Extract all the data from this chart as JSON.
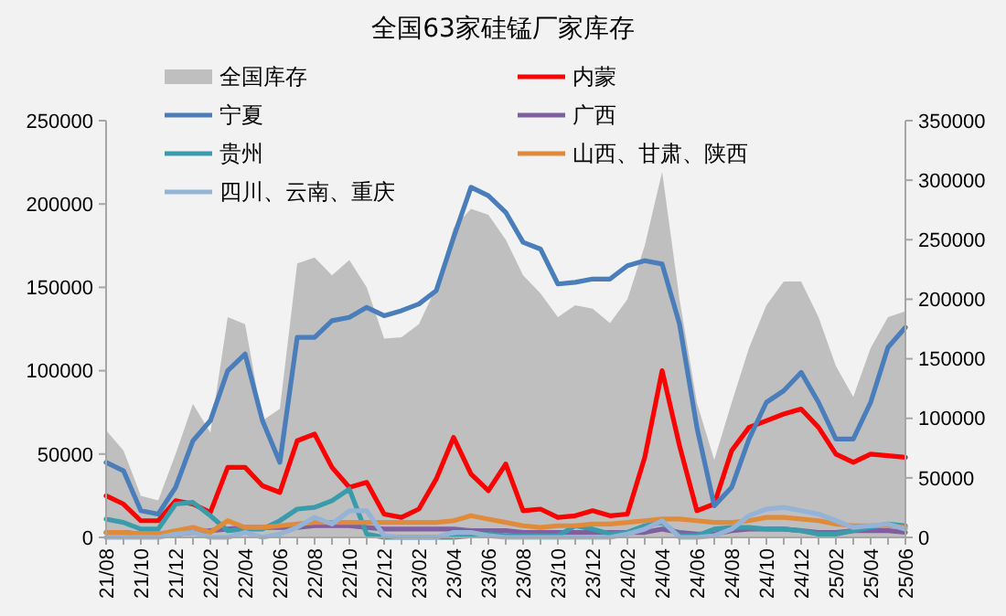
{
  "chart_data": {
    "type": "line",
    "title": "全国63家硅锰厂家库存",
    "categories": [
      "21/08",
      null,
      "21/10",
      null,
      "21/12",
      null,
      "22/02",
      null,
      "22/04",
      null,
      "22/06",
      null,
      "22/08",
      null,
      "22/10",
      null,
      "22/12",
      null,
      "23/02",
      null,
      "23/04",
      null,
      "23/06",
      null,
      "23/08",
      null,
      "23/10",
      null,
      "23/12",
      null,
      "24/02",
      null,
      "24/04",
      null,
      "24/06",
      null,
      "24/08",
      null,
      "24/10",
      null,
      "24/12",
      null,
      "25/02",
      null,
      "25/04",
      null,
      "25/06"
    ],
    "series": [
      {
        "name": "全国库存",
        "type": "area",
        "axis": "y2",
        "color": "#bfbfbf",
        "values": [
          90000,
          73000,
          35000,
          31000,
          70000,
          112000,
          88000,
          185000,
          179000,
          98000,
          108000,
          230000,
          235000,
          220000,
          233000,
          210000,
          167000,
          168000,
          179000,
          210000,
          260000,
          276000,
          271000,
          250000,
          220000,
          205000,
          185000,
          195000,
          192000,
          180000,
          200000,
          245000,
          307000,
          200000,
          113000,
          65000,
          113000,
          159000,
          195000,
          215000,
          215000,
          185000,
          144000,
          118000,
          159000,
          185000,
          190000
        ]
      },
      {
        "name": "内蒙",
        "color": "#ff0000",
        "values": [
          25000,
          20000,
          10000,
          10000,
          22000,
          20000,
          15000,
          42000,
          42000,
          31000,
          27000,
          58000,
          62000,
          42000,
          30000,
          33000,
          14000,
          12000,
          17000,
          35000,
          60000,
          38000,
          28000,
          44000,
          16000,
          17000,
          12000,
          13000,
          16000,
          13000,
          14000,
          48000,
          100000,
          55000,
          16000,
          20000,
          52000,
          66000,
          70000,
          74000,
          77000,
          66000,
          50000,
          45000,
          50000,
          49000,
          48000
        ]
      },
      {
        "name": "宁夏",
        "color": "#4a7ebb",
        "values": [
          45000,
          40000,
          16000,
          14000,
          30000,
          58000,
          70000,
          100000,
          110000,
          70000,
          45000,
          120000,
          120000,
          130000,
          132000,
          138000,
          133000,
          136000,
          140000,
          148000,
          180000,
          210000,
          205000,
          195000,
          177000,
          173000,
          152000,
          153000,
          155000,
          155000,
          163000,
          166000,
          164000,
          128000,
          66000,
          19000,
          30000,
          59000,
          81000,
          88000,
          99000,
          81000,
          59000,
          59000,
          81000,
          114000,
          126000
        ]
      },
      {
        "name": "广西",
        "color": "#7f5fa0",
        "values": [
          3000,
          3000,
          2000,
          2000,
          2000,
          3000,
          4000,
          5000,
          6000,
          6000,
          6000,
          6000,
          7000,
          7000,
          7000,
          6000,
          5000,
          5000,
          5000,
          5000,
          5000,
          4000,
          4000,
          4000,
          3000,
          3000,
          3000,
          3000,
          3000,
          3000,
          3000,
          3000,
          5000,
          3000,
          2000,
          2000,
          4000,
          5000,
          5000,
          5000,
          4000,
          3000,
          3000,
          4000,
          4000,
          4000,
          3000
        ]
      },
      {
        "name": "贵州",
        "color": "#3a9bab",
        "values": [
          11000,
          9000,
          5000,
          5000,
          20000,
          21000,
          13000,
          4000,
          5000,
          5000,
          10000,
          17000,
          18000,
          22000,
          29000,
          2000,
          0,
          0,
          0,
          0,
          0,
          1000,
          2000,
          1000,
          1000,
          1000,
          1000,
          7000,
          5000,
          2000,
          3000,
          7000,
          9000,
          1000,
          1000,
          5000,
          6000,
          6000,
          5000,
          5000,
          4000,
          2000,
          2000,
          4000,
          6000,
          8000,
          7000
        ]
      },
      {
        "name": "山西、甘肃、陕西",
        "color": "#e08a3c",
        "values": [
          3000,
          3000,
          2000,
          2000,
          4000,
          6000,
          3000,
          10000,
          6000,
          6000,
          7000,
          8000,
          9000,
          9000,
          9000,
          9000,
          9000,
          9000,
          9000,
          9000,
          10000,
          13000,
          11000,
          9000,
          7000,
          6000,
          7000,
          7000,
          8000,
          8000,
          9000,
          10000,
          11000,
          11000,
          10000,
          9000,
          9000,
          10000,
          12000,
          12000,
          11000,
          10000,
          8000,
          7000,
          7000,
          7000,
          6000
        ]
      },
      {
        "name": "四川、云南、重庆",
        "color": "#95b3d7",
        "values": [
          0,
          0,
          0,
          0,
          2000,
          3000,
          0,
          0,
          3000,
          0,
          2000,
          6000,
          12000,
          8000,
          16000,
          16000,
          1000,
          0,
          0,
          0,
          3000,
          3000,
          1000,
          0,
          0,
          0,
          0,
          0,
          0,
          0,
          2000,
          5000,
          10000,
          0,
          0,
          1000,
          5000,
          13000,
          17000,
          18000,
          16000,
          14000,
          10000,
          6000,
          7000,
          8000,
          5000
        ]
      }
    ],
    "ylim": [
      0,
      250000
    ],
    "yticks": [
      0,
      50000,
      100000,
      150000,
      200000,
      250000
    ],
    "y2lim": [
      0,
      350000
    ],
    "y2ticks": [
      0,
      50000,
      100000,
      150000,
      200000,
      250000,
      300000,
      350000
    ],
    "legend": "top",
    "grid": false
  }
}
